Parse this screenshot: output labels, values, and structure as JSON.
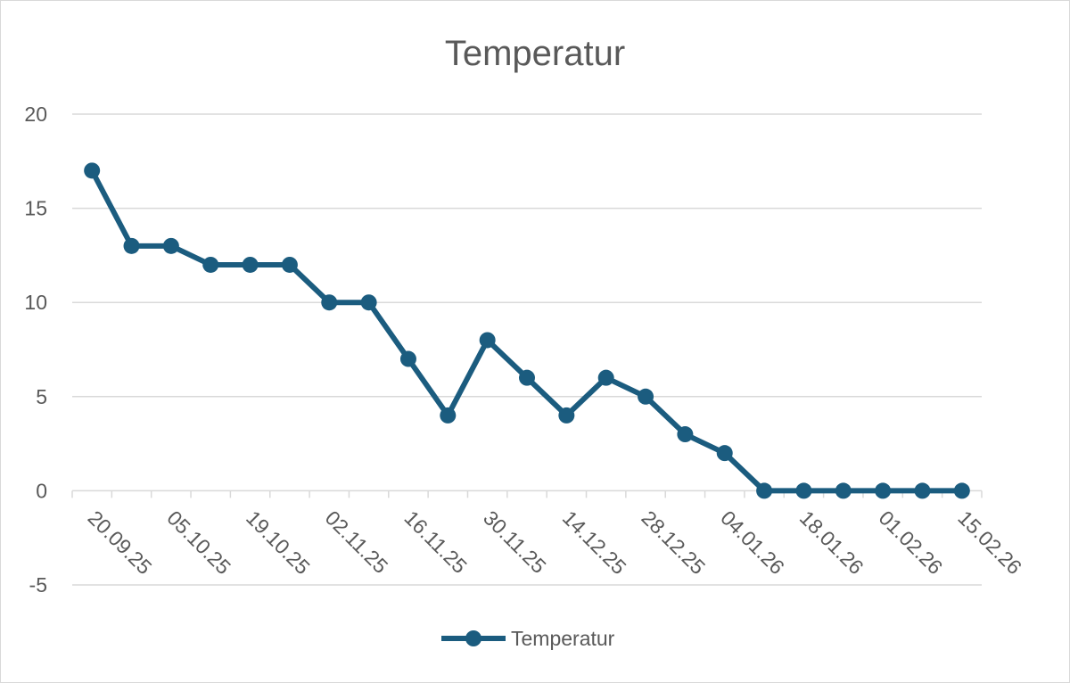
{
  "chart_data": {
    "type": "line",
    "title": "Temperatur",
    "xlabel": "",
    "ylabel": "",
    "ylim": [
      -5,
      20
    ],
    "y_ticks": [
      -5,
      0,
      5,
      10,
      15,
      20
    ],
    "x_tick_labels": [
      "20.09.25",
      "05.10.25",
      "19.10.25",
      "02.11.25",
      "16.11.25",
      "30.11.25",
      "14.12.25",
      "28.12.25",
      "04.01.26",
      "18.01.26",
      "01.02.26",
      "15.02.26"
    ],
    "grid": true,
    "legend": "bottom",
    "series": [
      {
        "name": "Temperatur",
        "color": "#1b5c7f",
        "values": [
          17,
          13,
          13,
          12,
          12,
          12,
          10,
          10,
          7,
          4,
          8,
          6,
          4,
          6,
          5,
          3,
          2,
          0,
          0,
          0,
          0,
          0,
          0
        ]
      }
    ]
  }
}
